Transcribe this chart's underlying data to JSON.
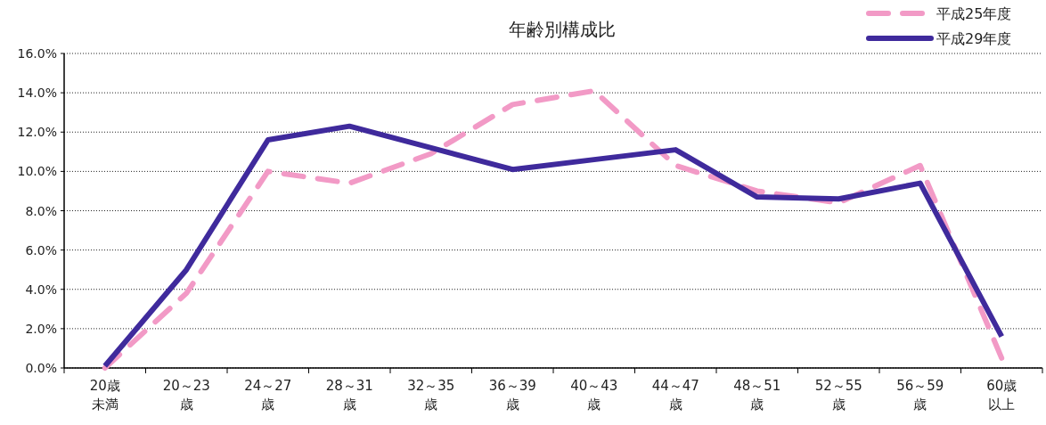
{
  "chart_data": {
    "type": "line",
    "title": "年齢別構成比",
    "categories": [
      "20歳未満",
      "20～23歳",
      "24～27歳",
      "28～31歳",
      "32～35歳",
      "36～39歳",
      "40～43歳",
      "44～47歳",
      "48～51歳",
      "52～55歳",
      "56～59歳",
      "60歳以上"
    ],
    "series": [
      {
        "name": "平成25年度",
        "color": "#f29ac6",
        "line_style": "dashed",
        "values": [
          0.0,
          3.8,
          10.0,
          9.4,
          10.9,
          13.4,
          14.1,
          10.3,
          9.0,
          8.4,
          10.3,
          0.5
        ]
      },
      {
        "name": "平成29年度",
        "color": "#3f2a9c",
        "line_style": "solid",
        "values": [
          0.1,
          5.0,
          11.6,
          12.3,
          11.2,
          10.1,
          10.6,
          11.1,
          8.7,
          8.6,
          9.4,
          1.6
        ]
      }
    ],
    "ylim": [
      0,
      16
    ],
    "yticks": [
      {
        "value": 0,
        "label": "0.0%"
      },
      {
        "value": 2,
        "label": "2.0%"
      },
      {
        "value": 4,
        "label": "4.0%"
      },
      {
        "value": 6,
        "label": "6.0%"
      },
      {
        "value": 8,
        "label": "8.0%"
      },
      {
        "value": 10,
        "label": "10.0%"
      },
      {
        "value": 12,
        "label": "12.0%"
      },
      {
        "value": 14,
        "label": "14.0%"
      },
      {
        "value": 16,
        "label": "16.0%"
      }
    ],
    "grid": "y",
    "legend": "top right",
    "marker": "none"
  }
}
